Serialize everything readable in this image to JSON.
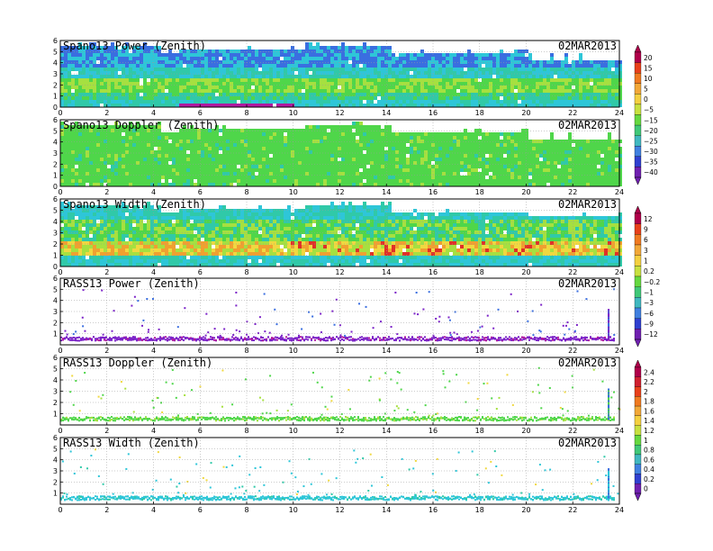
{
  "date_label": "02MAR2013",
  "chart_data": [
    {
      "type": "heatmap",
      "title": "Spano13 Power (Zenith)",
      "xlim": [
        0,
        24
      ],
      "ylim": [
        0,
        6
      ],
      "x_ticks": [
        "0",
        "2",
        "4",
        "6",
        "8",
        "10",
        "12",
        "14",
        "16",
        "18",
        "20",
        "22",
        "24"
      ],
      "y_ticks": [
        "0",
        "1",
        "2",
        "3",
        "4",
        "5",
        "6"
      ],
      "colorbar": "power",
      "pattern": "power",
      "grid": true
    },
    {
      "type": "heatmap",
      "title": "Spano13 Doppler (Zenith)",
      "xlim": [
        0,
        24
      ],
      "ylim": [
        0,
        6
      ],
      "x_ticks": [
        "0",
        "2",
        "4",
        "6",
        "8",
        "10",
        "12",
        "14",
        "16",
        "18",
        "20",
        "22",
        "24"
      ],
      "y_ticks": [
        "0",
        "1",
        "2",
        "3",
        "4",
        "5",
        "6"
      ],
      "colorbar": "power",
      "pattern": "doppler",
      "grid": true
    },
    {
      "type": "heatmap",
      "title": "Spano13 Width (Zenith)",
      "xlim": [
        0,
        24
      ],
      "ylim": [
        0,
        6
      ],
      "x_ticks": [
        "0",
        "2",
        "4",
        "6",
        "8",
        "10",
        "12",
        "14",
        "16",
        "18",
        "20",
        "22",
        "24"
      ],
      "y_ticks": [
        "0",
        "1",
        "2",
        "3",
        "4",
        "5",
        "6"
      ],
      "colorbar": "width",
      "pattern": "width",
      "grid": true
    },
    {
      "type": "heatmap",
      "title": "RASS13 Power (Zenith)",
      "xlim": [
        0,
        24
      ],
      "ylim": [
        0,
        6
      ],
      "x_ticks": [
        "0",
        "2",
        "4",
        "6",
        "8",
        "10",
        "12",
        "14",
        "16",
        "18",
        "20",
        "22",
        "24"
      ],
      "y_ticks": [
        "1",
        "2",
        "3",
        "4",
        "5",
        "6"
      ],
      "colorbar": "width",
      "pattern": "rass_power",
      "grid": true
    },
    {
      "type": "heatmap",
      "title": "RASS13 Doppler (Zenith)",
      "xlim": [
        0,
        24
      ],
      "ylim": [
        0,
        6
      ],
      "x_ticks": [
        "0",
        "2",
        "4",
        "6",
        "8",
        "10",
        "12",
        "14",
        "16",
        "18",
        "20",
        "22",
        "24"
      ],
      "y_ticks": [
        "1",
        "2",
        "3",
        "4",
        "5",
        "6"
      ],
      "colorbar": "rass",
      "pattern": "rass_doppler",
      "grid": true
    },
    {
      "type": "heatmap",
      "title": "RASS13 Width (Zenith)",
      "xlim": [
        0,
        24
      ],
      "ylim": [
        0,
        6
      ],
      "x_ticks": [
        "0",
        "2",
        "4",
        "6",
        "8",
        "10",
        "12",
        "14",
        "16",
        "18",
        "20",
        "22",
        "24"
      ],
      "y_ticks": [
        "1",
        "2",
        "3",
        "4",
        "5",
        "6"
      ],
      "colorbar": "rass",
      "pattern": "rass_width",
      "grid": true
    }
  ],
  "colorbars": {
    "power": {
      "labels": [
        "20",
        "15",
        "10",
        "5",
        "0",
        "−5",
        "−15",
        "−20",
        "−25",
        "−30",
        "−35",
        "−40"
      ],
      "colors": [
        "#b0004a",
        "#e8401a",
        "#f07a20",
        "#f2a838",
        "#f4d040",
        "#c8e040",
        "#66d840",
        "#40c878",
        "#40b8c0",
        "#4080e0",
        "#3040d0",
        "#7020b0"
      ]
    },
    "width": {
      "labels": [
        "12",
        "9",
        "6",
        "3",
        "1",
        "0.2",
        "−0.2",
        "−1",
        "−3",
        "−6",
        "−9",
        "−12"
      ],
      "colors": [
        "#b0004a",
        "#e8401a",
        "#f07a20",
        "#f2a838",
        "#f4d040",
        "#c8e040",
        "#66d840",
        "#40c878",
        "#40b8c0",
        "#4080e0",
        "#3040d0",
        "#7020b0"
      ]
    },
    "rass": {
      "labels": [
        "2.4",
        "2.2",
        "2",
        "1.8",
        "1.6",
        "1.4",
        "1.2",
        "1",
        "0.8",
        "0.6",
        "0.4",
        "0.2",
        "0"
      ],
      "colors": [
        "#b0004a",
        "#d02030",
        "#e8401a",
        "#f07a20",
        "#f2a838",
        "#f4d040",
        "#c8e040",
        "#66d840",
        "#40c878",
        "#40b8c0",
        "#4080e0",
        "#3040d0",
        "#7020b0"
      ]
    }
  }
}
